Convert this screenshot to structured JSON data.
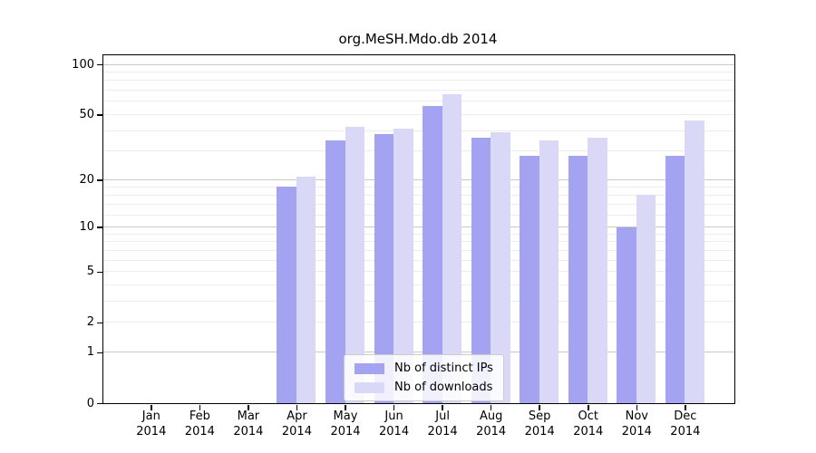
{
  "title": "org.MeSH.Mdo.db 2014",
  "chart_data": {
    "type": "bar",
    "title": "org.MeSH.Mdo.db 2014",
    "categories": [
      "Jan 2014",
      "Feb 2014",
      "Mar 2014",
      "Apr 2014",
      "May 2014",
      "Jun 2014",
      "Jul 2014",
      "Aug 2014",
      "Sep 2014",
      "Oct 2014",
      "Nov 2014",
      "Dec 2014"
    ],
    "series": [
      {
        "name": "Nb of distinct IPs",
        "color": "#a3a3f1",
        "values": [
          0,
          0,
          0,
          18,
          35,
          38,
          56,
          36,
          28,
          28,
          10,
          28
        ]
      },
      {
        "name": "Nb of downloads",
        "color": "#d9d9f7",
        "values": [
          0,
          0,
          0,
          21,
          42,
          41,
          66,
          39,
          35,
          36,
          16,
          46
        ]
      }
    ],
    "xlabel": "",
    "ylabel": "",
    "yscale": "log1p",
    "yticks": [
      100,
      50,
      20,
      10,
      5,
      2,
      1,
      0
    ],
    "ylim": [
      0,
      113
    ],
    "grid": "horizontal",
    "legend_position": "bottom-center-inside"
  },
  "legend": {
    "items": [
      {
        "label": "Nb of distinct IPs"
      },
      {
        "label": "Nb of downloads"
      }
    ]
  }
}
